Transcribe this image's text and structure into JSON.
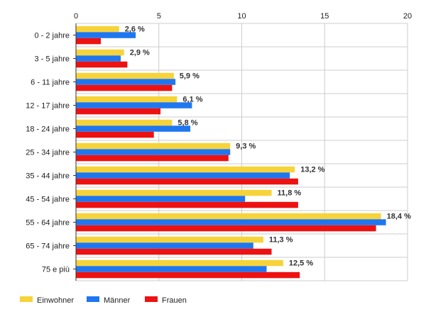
{
  "chart_data": {
    "type": "bar",
    "orientation": "horizontal",
    "title": "",
    "xlabel": "",
    "ylabel": "",
    "xlim": [
      0,
      20
    ],
    "x_ticks": [
      0,
      5,
      10,
      15,
      20
    ],
    "grid": true,
    "legend_position": "bottom-left",
    "categories": [
      "0 - 2 jahre",
      "3 - 5 jahre",
      "6 - 11 jahre",
      "12 - 17 jahre",
      "18 - 24 jahre",
      "25 - 34 jahre",
      "35 - 44 jahre",
      "45 - 54 jahre",
      "55 - 64 jahre",
      "65 - 74 jahre",
      "75 e più"
    ],
    "series": [
      {
        "name": "Einwohner",
        "color": "#f7d33a",
        "values": [
          2.6,
          2.9,
          5.9,
          6.1,
          5.8,
          9.3,
          13.2,
          11.8,
          18.4,
          11.3,
          12.5
        ]
      },
      {
        "name": "Männer",
        "color": "#1f77f0",
        "values": [
          3.6,
          2.7,
          6.0,
          7.0,
          6.9,
          9.3,
          12.9,
          10.2,
          18.7,
          10.7,
          11.5
        ]
      },
      {
        "name": "Frauen",
        "color": "#ee1111",
        "values": [
          1.5,
          3.1,
          5.8,
          5.1,
          4.7,
          9.2,
          13.4,
          13.4,
          18.1,
          11.8,
          13.5
        ]
      }
    ],
    "data_labels": [
      "2,6 %",
      "2,9 %",
      "5,9 %",
      "6,1 %",
      "5,8 %",
      "9,3 %",
      "13,2 %",
      "11,8 %",
      "18,4 %",
      "11,3 %",
      "12,5 %"
    ]
  }
}
